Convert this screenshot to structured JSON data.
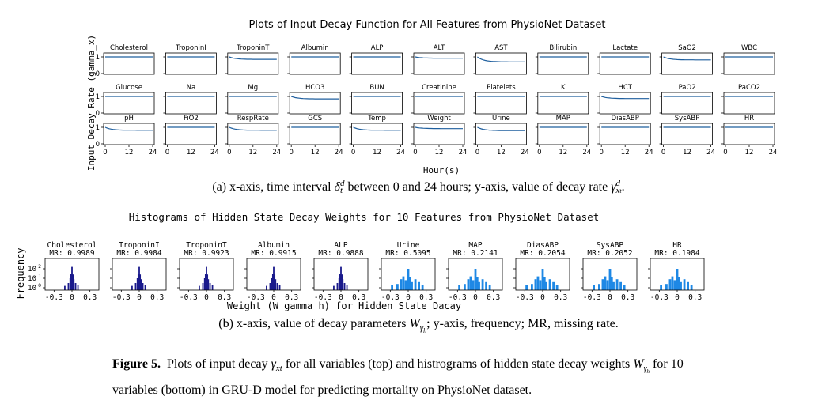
{
  "colors": {
    "line": "#1f5f9e",
    "hist_dark": "#1a1a8c",
    "hist_light": "#1e88e5",
    "axis": "#000000"
  },
  "chart_data": [
    {
      "type": "line",
      "title": "Plots of Input Decay Function for All Features from PhysioNet Dataset",
      "xlabel": "Hour(s)",
      "ylabel": "Input Decay Rate (gamma_x)",
      "xlim": [
        0,
        24
      ],
      "ylim": [
        0,
        1
      ],
      "xticks": [
        "0",
        "12",
        "24"
      ],
      "yticks": [
        "0",
        "1"
      ],
      "panels": [
        {
          "name": "Cholesterol",
          "start": 1.0,
          "end": 1.0
        },
        {
          "name": "TroponinI",
          "start": 1.0,
          "end": 1.0
        },
        {
          "name": "TroponinT",
          "start": 1.0,
          "end": 0.85
        },
        {
          "name": "Albumin",
          "start": 1.0,
          "end": 1.0
        },
        {
          "name": "ALP",
          "start": 1.0,
          "end": 1.0
        },
        {
          "name": "ALT",
          "start": 1.0,
          "end": 0.92
        },
        {
          "name": "AST",
          "start": 1.0,
          "end": 0.7
        },
        {
          "name": "Bilirubin",
          "start": 1.0,
          "end": 1.0
        },
        {
          "name": "Lactate",
          "start": 1.0,
          "end": 1.0
        },
        {
          "name": "SaO2",
          "start": 1.0,
          "end": 0.82
        },
        {
          "name": "WBC",
          "start": 1.0,
          "end": 1.0
        },
        {
          "name": "Glucose",
          "start": 1.0,
          "end": 1.0
        },
        {
          "name": "Na",
          "start": 1.0,
          "end": 1.0
        },
        {
          "name": "Mg",
          "start": 1.0,
          "end": 1.0
        },
        {
          "name": "HCO3",
          "start": 1.0,
          "end": 0.85
        },
        {
          "name": "BUN",
          "start": 1.0,
          "end": 1.0
        },
        {
          "name": "Creatinine",
          "start": 1.0,
          "end": 1.0
        },
        {
          "name": "Platelets",
          "start": 1.0,
          "end": 1.0
        },
        {
          "name": "K",
          "start": 1.0,
          "end": 1.0
        },
        {
          "name": "HCT",
          "start": 1.0,
          "end": 0.87
        },
        {
          "name": "PaO2",
          "start": 1.0,
          "end": 1.0
        },
        {
          "name": "PaCO2",
          "start": 1.0,
          "end": 1.0
        },
        {
          "name": "pH",
          "start": 1.0,
          "end": 0.82
        },
        {
          "name": "FiO2",
          "start": 1.0,
          "end": 1.0
        },
        {
          "name": "RespRate",
          "start": 1.0,
          "end": 0.82
        },
        {
          "name": "GCS",
          "start": 1.0,
          "end": 1.0
        },
        {
          "name": "Temp",
          "start": 1.0,
          "end": 0.82
        },
        {
          "name": "Weight",
          "start": 1.0,
          "end": 0.92
        },
        {
          "name": "Urine",
          "start": 1.0,
          "end": 0.8
        },
        {
          "name": "MAP",
          "start": 1.0,
          "end": 1.0
        },
        {
          "name": "DiasABP",
          "start": 1.0,
          "end": 1.0
        },
        {
          "name": "SysABP",
          "start": 1.0,
          "end": 1.0
        },
        {
          "name": "HR",
          "start": 1.0,
          "end": 1.0
        }
      ]
    },
    {
      "type": "histogram",
      "title": "Histograms of Hidden State Decay Weights for 10 Features from PhysioNet Dataset",
      "xlabel": "Weight (W_gamma_h) for Hidden State Dacay",
      "ylabel": "Frequency",
      "xlim": [
        -0.45,
        0.45
      ],
      "xticks": [
        "-0.3",
        "0",
        "0.3"
      ],
      "yticks": [
        "10",
        "10",
        "10"
      ],
      "ytick_exponents": [
        "0",
        "1",
        "2"
      ],
      "yscale": "log",
      "panels": [
        {
          "name": "Cholesterol",
          "mr_label": "MR: 0.9989",
          "style": "dark"
        },
        {
          "name": "TroponinI",
          "mr_label": "MR: 0.9984",
          "style": "dark"
        },
        {
          "name": "TroponinT",
          "mr_label": "MR: 0.9923",
          "style": "dark"
        },
        {
          "name": "Albumin",
          "mr_label": "MR: 0.9915",
          "style": "dark"
        },
        {
          "name": "ALP",
          "mr_label": "MR: 0.9888",
          "style": "dark"
        },
        {
          "name": "Urine",
          "mr_label": "MR: 0.5095",
          "style": "light"
        },
        {
          "name": "MAP",
          "mr_label": "MR: 0.2141",
          "style": "light"
        },
        {
          "name": "DiasABP",
          "mr_label": "MR: 0.2054",
          "style": "light"
        },
        {
          "name": "SysABP",
          "mr_label": "MR: 0.2052",
          "style": "light"
        },
        {
          "name": "HR",
          "mr_label": "MR: 0.1984",
          "style": "light"
        }
      ]
    }
  ],
  "captions": {
    "a": {
      "p1": "(a) x-axis, time interval ",
      "delta": "δ",
      "d1": "d",
      "t1": "t",
      "p2": " between 0 and 24 hours; y-axis, value of decay rate ",
      "gamma": "γ",
      "x": "x",
      "t2": "t",
      "d2": "d",
      "p3": "."
    },
    "b": {
      "p1": "(b) x-axis, value of decay parameters ",
      "W": "W",
      "gamma": "γ",
      "h": "h",
      "p2": "; y-axis, frequency; MR, missing rate."
    },
    "figure": {
      "label": "Figure 5.",
      "p1": "  Plots of input decay ",
      "gamma": "γ",
      "xt": "xt",
      "p2": " for all variables (top) and histrograms of hidden state decay weights ",
      "W": "W",
      "gamma2": "γ",
      "h": "h",
      "p3": " for 10",
      "line2": "variables (bottom) in GRU-D model for predicting mortality on PhysioNet dataset."
    }
  }
}
